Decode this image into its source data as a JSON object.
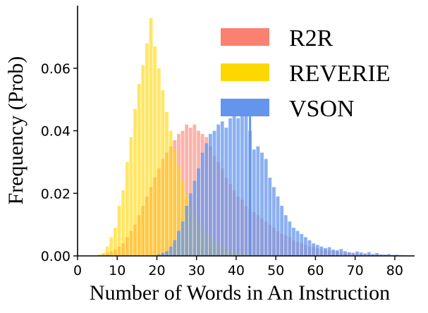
{
  "chart_data": {
    "type": "bar",
    "title": "",
    "xlabel": "Number of Words in An Instruction",
    "ylabel": "Frequency (Prob)",
    "xlim": [
      0,
      85
    ],
    "ylim": [
      0,
      0.08
    ],
    "xticks": [
      0,
      10,
      20,
      30,
      40,
      50,
      60,
      70,
      80
    ],
    "xtick_labels": [
      "0",
      "10",
      "20",
      "30",
      "40",
      "50",
      "60",
      "70",
      "80"
    ],
    "yticks": [
      0.0,
      0.02,
      0.04,
      0.06
    ],
    "ytick_labels": [
      "0.00",
      "0.02",
      "0.04",
      "0.06"
    ],
    "grid": false,
    "legend_position": "top-right",
    "bin_width": 1,
    "x": [
      4,
      5,
      6,
      7,
      8,
      9,
      10,
      11,
      12,
      13,
      14,
      15,
      16,
      17,
      18,
      19,
      20,
      21,
      22,
      23,
      24,
      25,
      26,
      27,
      28,
      29,
      30,
      31,
      32,
      33,
      34,
      35,
      36,
      37,
      38,
      39,
      40,
      41,
      42,
      43,
      44,
      45,
      46,
      47,
      48,
      49,
      50,
      51,
      52,
      53,
      54,
      55,
      56,
      57,
      58,
      59,
      60,
      61,
      62,
      63,
      64,
      65,
      66,
      67,
      68,
      69,
      70,
      71,
      72,
      73,
      74,
      75,
      76,
      77,
      78,
      79,
      80,
      81,
      82,
      83,
      84
    ],
    "series": [
      {
        "name": "R2R",
        "color": "#fa8072",
        "values": [
          0,
          0,
          0.0005,
          0.001,
          0.0015,
          0.002,
          0.003,
          0.004,
          0.006,
          0.008,
          0.01,
          0.013,
          0.016,
          0.019,
          0.022,
          0.025,
          0.028,
          0.031,
          0.033,
          0.035,
          0.037,
          0.039,
          0.04,
          0.042,
          0.041,
          0.042,
          0.04,
          0.039,
          0.038,
          0.035,
          0.032,
          0.03,
          0.028,
          0.025,
          0.023,
          0.021,
          0.019,
          0.018,
          0.016,
          0.015,
          0.014,
          0.013,
          0.012,
          0.011,
          0.01,
          0.009,
          0.008,
          0.007,
          0.0065,
          0.006,
          0.005,
          0.0045,
          0.004,
          0.0035,
          0.003,
          0.0028,
          0.0025,
          0.0022,
          0.002,
          0.0018,
          0.0016,
          0.0014,
          0.0012,
          0.001,
          0.0009,
          0.0008,
          0.0007,
          0.0006,
          0.0005,
          0.0005,
          0.0004,
          0.0004,
          0.0003,
          0.0003,
          0.0002,
          0.0002,
          0.0002,
          0.0001,
          0.0001,
          0.0001,
          0.0001
        ]
      },
      {
        "name": "REVERIE",
        "color": "#ffd700",
        "values": [
          0,
          0.0005,
          0.001,
          0.003,
          0.006,
          0.009,
          0.016,
          0.021,
          0.03,
          0.038,
          0.047,
          0.055,
          0.061,
          0.068,
          0.076,
          0.067,
          0.06,
          0.053,
          0.046,
          0.04,
          0.034,
          0.029,
          0.024,
          0.02,
          0.016,
          0.013,
          0.011,
          0.009,
          0.007,
          0.006,
          0.0045,
          0.0035,
          0.003,
          0.0022,
          0.0018,
          0.0015,
          0.0012,
          0.001,
          0.0008,
          0.0006,
          0.0005,
          0.0004,
          0.0003,
          0.0002,
          0.0002,
          0.0001,
          0.0001,
          0,
          0,
          0,
          0,
          0,
          0,
          0,
          0,
          0,
          0,
          0,
          0,
          0,
          0,
          0,
          0,
          0,
          0,
          0,
          0,
          0,
          0,
          0,
          0,
          0,
          0,
          0,
          0,
          0,
          0,
          0,
          0,
          0,
          0
        ]
      },
      {
        "name": "VSON",
        "color": "#6495ed",
        "values": [
          0,
          0,
          0,
          0,
          0,
          0,
          0,
          0,
          0,
          0,
          0,
          0,
          0,
          0,
          0,
          0,
          0.0005,
          0.001,
          0.0015,
          0.003,
          0.005,
          0.008,
          0.011,
          0.016,
          0.02,
          0.024,
          0.028,
          0.033,
          0.036,
          0.039,
          0.04,
          0.042,
          0.043,
          0.041,
          0.044,
          0.045,
          0.044,
          0.045,
          0.047,
          0.04,
          0.034,
          0.035,
          0.033,
          0.031,
          0.025,
          0.022,
          0.019,
          0.016,
          0.013,
          0.011,
          0.009,
          0.008,
          0.007,
          0.006,
          0.005,
          0.004,
          0.0035,
          0.003,
          0.0025,
          0.0028,
          0.002,
          0.0018,
          0.0022,
          0.0015,
          0.0012,
          0.001,
          0.0014,
          0.0011,
          0.0008,
          0.0012,
          0.0006,
          0.0009,
          0.0005,
          0.0004,
          0.0006,
          0.0003,
          0.0004,
          0.0002,
          0.0002,
          0.0001,
          0.0001
        ]
      }
    ],
    "annotations": [
      {
        "type": "spike",
        "x": 43.5,
        "y": 0.045,
        "series": "VSON"
      }
    ]
  }
}
